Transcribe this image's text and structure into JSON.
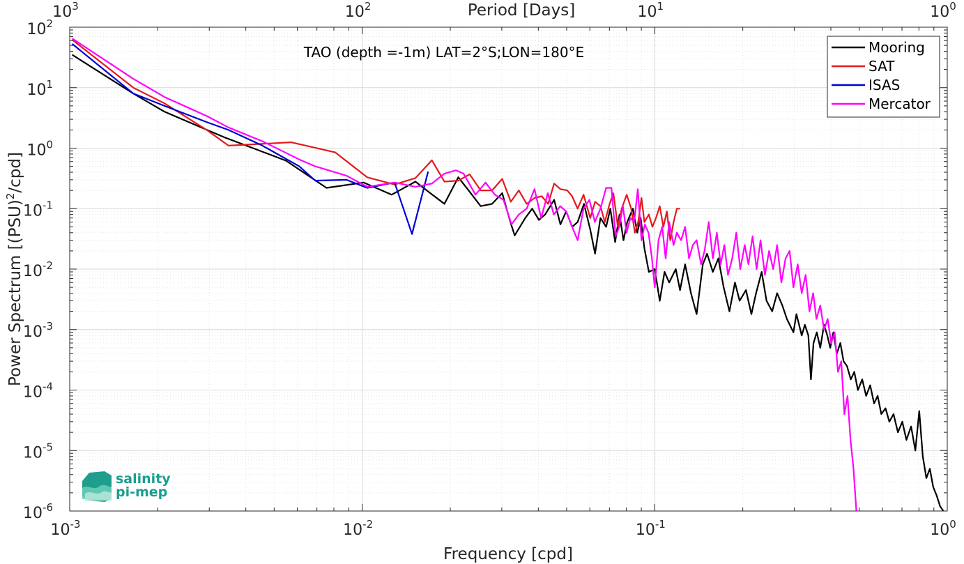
{
  "chart_data": {
    "type": "line",
    "title": "TAO (depth =-1m) LAT=2°S;LON=180°E",
    "xlabel": "Frequency [cpd]",
    "ylabel": "Power Spectrum [(PSU)^2/cpd]",
    "top_xlabel": "Period [Days]",
    "xscale": "log",
    "yscale": "log",
    "xlim": [
      0.001,
      1
    ],
    "ylim": [
      1e-06,
      100
    ],
    "grid": true,
    "legend_position": "top-right",
    "x_ticks": [
      {
        "base": "10",
        "exp": "-3"
      },
      {
        "base": "10",
        "exp": "-2"
      },
      {
        "base": "10",
        "exp": "-1"
      },
      {
        "base": "10",
        "exp": "0"
      }
    ],
    "top_ticks": [
      {
        "base": "10",
        "exp": "3"
      },
      {
        "base": "10",
        "exp": "2"
      },
      {
        "base": "10",
        "exp": "1"
      },
      {
        "base": "10",
        "exp": "0"
      }
    ],
    "y_ticks": [
      {
        "base": "10",
        "exp": "2"
      },
      {
        "base": "10",
        "exp": "1"
      },
      {
        "base": "10",
        "exp": "0"
      },
      {
        "base": "10",
        "exp": "-1"
      },
      {
        "base": "10",
        "exp": "-2"
      },
      {
        "base": "10",
        "exp": "-3"
      },
      {
        "base": "10",
        "exp": "-4"
      },
      {
        "base": "10",
        "exp": "-5"
      },
      {
        "base": "10",
        "exp": "-6"
      }
    ],
    "series": [
      {
        "name": "Mooring",
        "color": "#000000",
        "points": [
          [
            0.00102,
            35
          ],
          [
            0.00165,
            8
          ],
          [
            0.00211,
            4
          ],
          [
            0.00339,
            1.5
          ],
          [
            0.00549,
            0.62
          ],
          [
            0.00755,
            0.22
          ],
          [
            0.0101,
            0.27
          ],
          [
            0.0126,
            0.17
          ],
          [
            0.0152,
            0.28
          ],
          [
            0.0171,
            0.18
          ],
          [
            0.0191,
            0.12
          ],
          [
            0.0213,
            0.33
          ],
          [
            0.0233,
            0.19
          ],
          [
            0.0254,
            0.11
          ],
          [
            0.0278,
            0.12
          ],
          [
            0.0301,
            0.18
          ],
          [
            0.0321,
            0.06
          ],
          [
            0.0332,
            0.036
          ],
          [
            0.0361,
            0.07
          ],
          [
            0.0381,
            0.1
          ],
          [
            0.0402,
            0.065
          ],
          [
            0.0422,
            0.08
          ],
          [
            0.0453,
            0.14
          ],
          [
            0.0476,
            0.055
          ],
          [
            0.0498,
            0.09
          ],
          [
            0.0522,
            0.05
          ],
          [
            0.0545,
            0.06
          ],
          [
            0.0573,
            0.12
          ],
          [
            0.0602,
            0.045
          ],
          [
            0.0625,
            0.018
          ],
          [
            0.0652,
            0.07
          ],
          [
            0.0682,
            0.05
          ],
          [
            0.0705,
            0.1
          ],
          [
            0.0732,
            0.028
          ],
          [
            0.0758,
            0.08
          ],
          [
            0.0782,
            0.03
          ],
          [
            0.0805,
            0.06
          ],
          [
            0.0842,
            0.1
          ],
          [
            0.0871,
            0.04
          ],
          [
            0.0895,
            0.07
          ],
          [
            0.0922,
            0.022
          ],
          [
            0.0955,
            0.009
          ],
          [
            0.1,
            0.01
          ],
          [
            0.104,
            0.003
          ],
          [
            0.108,
            0.009
          ],
          [
            0.112,
            0.006
          ],
          [
            0.118,
            0.01
          ],
          [
            0.122,
            0.0045
          ],
          [
            0.127,
            0.012
          ],
          [
            0.133,
            0.004
          ],
          [
            0.139,
            0.0018
          ],
          [
            0.146,
            0.012
          ],
          [
            0.151,
            0.018
          ],
          [
            0.158,
            0.009
          ],
          [
            0.165,
            0.015
          ],
          [
            0.172,
            0.005
          ],
          [
            0.18,
            0.002
          ],
          [
            0.188,
            0.006
          ],
          [
            0.195,
            0.003
          ],
          [
            0.205,
            0.0045
          ],
          [
            0.214,
            0.0018
          ],
          [
            0.222,
            0.004
          ],
          [
            0.232,
            0.009
          ],
          [
            0.241,
            0.003
          ],
          [
            0.252,
            0.002
          ],
          [
            0.262,
            0.004
          ],
          [
            0.273,
            0.0025
          ],
          [
            0.283,
            0.0015
          ],
          [
            0.298,
            0.0009
          ],
          [
            0.305,
            0.0018
          ],
          [
            0.318,
            0.0008
          ],
          [
            0.326,
            0.0012
          ],
          [
            0.335,
            0.0008
          ],
          [
            0.342,
            0.00015
          ],
          [
            0.349,
            0.0006
          ],
          [
            0.358,
            0.0009
          ],
          [
            0.368,
            0.0005
          ],
          [
            0.379,
            0.0012
          ],
          [
            0.389,
            0.0008
          ],
          [
            0.398,
            0.0005
          ],
          [
            0.408,
            0.0009
          ],
          [
            0.419,
            0.0004
          ],
          [
            0.431,
            0.0006
          ],
          [
            0.442,
            0.0003
          ],
          [
            0.454,
            0.00025
          ],
          [
            0.468,
            0.00015
          ],
          [
            0.481,
            0.0002
          ],
          [
            0.495,
            0.0001
          ],
          [
            0.512,
            0.00015
          ],
          [
            0.528,
            8e-05
          ],
          [
            0.545,
            0.00012
          ],
          [
            0.562,
            6e-05
          ],
          [
            0.578,
            8e-05
          ],
          [
            0.595,
            4e-05
          ],
          [
            0.615,
            5e-05
          ],
          [
            0.634,
            3e-05
          ],
          [
            0.655,
            4e-05
          ],
          [
            0.678,
            2e-05
          ],
          [
            0.702,
            3e-05
          ],
          [
            0.725,
            1.5e-05
          ],
          [
            0.752,
            2.5e-05
          ],
          [
            0.778,
            1e-05
          ],
          [
            0.802,
            4.5e-05
          ],
          [
            0.825,
            8e-06
          ],
          [
            0.848,
            3.5e-06
          ],
          [
            0.872,
            5e-06
          ],
          [
            0.895,
            2.5e-06
          ],
          [
            0.92,
            1.8e-06
          ],
          [
            0.945,
            1.2e-06
          ],
          [
            0.97,
            1e-06
          ]
        ]
      },
      {
        "name": "SAT",
        "color": "#e41a1c",
        "points": [
          [
            0.00102,
            62
          ],
          [
            0.00165,
            10
          ],
          [
            0.00211,
            5.5
          ],
          [
            0.00294,
            2
          ],
          [
            0.00349,
            1.1
          ],
          [
            0.00571,
            1.25
          ],
          [
            0.00809,
            0.85
          ],
          [
            0.0104,
            0.33
          ],
          [
            0.0129,
            0.25
          ],
          [
            0.0152,
            0.32
          ],
          [
            0.0173,
            0.63
          ],
          [
            0.0191,
            0.28
          ],
          [
            0.0213,
            0.29
          ],
          [
            0.0233,
            0.37
          ],
          [
            0.0254,
            0.2
          ],
          [
            0.0278,
            0.2
          ],
          [
            0.0301,
            0.31
          ],
          [
            0.0322,
            0.13
          ],
          [
            0.0343,
            0.2
          ],
          [
            0.0365,
            0.12
          ],
          [
            0.0388,
            0.15
          ],
          [
            0.0411,
            0.16
          ],
          [
            0.0432,
            0.12
          ],
          [
            0.0453,
            0.26
          ],
          [
            0.0476,
            0.21
          ],
          [
            0.0502,
            0.2
          ],
          [
            0.0522,
            0.16
          ],
          [
            0.0545,
            0.1
          ],
          [
            0.0571,
            0.17
          ],
          [
            0.0602,
            0.07
          ],
          [
            0.0625,
            0.13
          ],
          [
            0.0652,
            0.11
          ],
          [
            0.0675,
            0.06
          ],
          [
            0.0701,
            0.12
          ],
          [
            0.0722,
            0.18
          ],
          [
            0.0748,
            0.05
          ],
          [
            0.0771,
            0.1
          ],
          [
            0.0802,
            0.17
          ],
          [
            0.0831,
            0.1
          ],
          [
            0.0855,
            0.04
          ],
          [
            0.0878,
            0.06
          ],
          [
            0.0901,
            0.15
          ],
          [
            0.0922,
            0.06
          ],
          [
            0.0955,
            0.08
          ],
          [
            0.0982,
            0.05
          ],
          [
            0.101,
            0.07
          ],
          [
            0.104,
            0.11
          ],
          [
            0.107,
            0.05
          ],
          [
            0.11,
            0.09
          ],
          [
            0.113,
            0.03
          ],
          [
            0.116,
            0.06
          ],
          [
            0.119,
            0.1
          ],
          [
            0.122,
            0.1
          ]
        ]
      },
      {
        "name": "ISAS",
        "color": "#0000d8",
        "points": [
          [
            0.00102,
            53
          ],
          [
            0.00165,
            8
          ],
          [
            0.00211,
            5
          ],
          [
            0.00294,
            2.7
          ],
          [
            0.00349,
            2
          ],
          [
            0.00456,
            1.1
          ],
          [
            0.00609,
            0.5
          ],
          [
            0.00691,
            0.29
          ],
          [
            0.00884,
            0.3
          ],
          [
            0.0104,
            0.22
          ],
          [
            0.0129,
            0.27
          ],
          [
            0.0148,
            0.038
          ],
          [
            0.0168,
            0.41
          ]
        ]
      },
      {
        "name": "Mercator",
        "color": "#ff00ff",
        "points": [
          [
            0.00102,
            65
          ],
          [
            0.00165,
            14
          ],
          [
            0.00211,
            7
          ],
          [
            0.00294,
            3.4
          ],
          [
            0.00349,
            2.2
          ],
          [
            0.00456,
            1.3
          ],
          [
            0.00609,
            0.65
          ],
          [
            0.00691,
            0.5
          ],
          [
            0.00884,
            0.35
          ],
          [
            0.0104,
            0.23
          ],
          [
            0.0129,
            0.27
          ],
          [
            0.0152,
            0.23
          ],
          [
            0.0173,
            0.26
          ],
          [
            0.0191,
            0.38
          ],
          [
            0.0209,
            0.43
          ],
          [
            0.0222,
            0.38
          ],
          [
            0.0244,
            0.17
          ],
          [
            0.0264,
            0.27
          ],
          [
            0.0284,
            0.17
          ],
          [
            0.0304,
            0.14
          ],
          [
            0.0324,
            0.055
          ],
          [
            0.0343,
            0.08
          ],
          [
            0.0365,
            0.1
          ],
          [
            0.0388,
            0.21
          ],
          [
            0.0409,
            0.07
          ],
          [
            0.0431,
            0.18
          ],
          [
            0.0452,
            0.08
          ],
          [
            0.0475,
            0.11
          ],
          [
            0.0498,
            0.09
          ],
          [
            0.0522,
            0.05
          ],
          [
            0.0545,
            0.03
          ],
          [
            0.0571,
            0.1
          ],
          [
            0.0598,
            0.14
          ],
          [
            0.0624,
            0.06
          ],
          [
            0.0652,
            0.1
          ],
          [
            0.0682,
            0.22
          ],
          [
            0.0711,
            0.22
          ],
          [
            0.0735,
            0.035
          ],
          [
            0.0756,
            0.05
          ],
          [
            0.0778,
            0.11
          ],
          [
            0.0801,
            0.04
          ],
          [
            0.0825,
            0.07
          ],
          [
            0.0851,
            0.06
          ],
          [
            0.0875,
            0.21
          ],
          [
            0.0901,
            0.03
          ],
          [
            0.0925,
            0.055
          ],
          [
            0.0952,
            0.04
          ],
          [
            0.0978,
            0.015
          ],
          [
            0.1,
            0.005
          ],
          [
            0.103,
            0.03
          ],
          [
            0.106,
            0.05
          ],
          [
            0.109,
            0.015
          ],
          [
            0.112,
            0.06
          ],
          [
            0.116,
            0.025
          ],
          [
            0.119,
            0.04
          ],
          [
            0.123,
            0.03
          ],
          [
            0.127,
            0.05
          ],
          [
            0.131,
            0.015
          ],
          [
            0.135,
            0.025
          ],
          [
            0.139,
            0.03
          ],
          [
            0.144,
            0.012
          ],
          [
            0.148,
            0.02
          ],
          [
            0.153,
            0.06
          ],
          [
            0.158,
            0.015
          ],
          [
            0.163,
            0.04
          ],
          [
            0.168,
            0.012
          ],
          [
            0.173,
            0.025
          ],
          [
            0.178,
            0.008
          ],
          [
            0.184,
            0.015
          ],
          [
            0.19,
            0.04
          ],
          [
            0.196,
            0.01
          ],
          [
            0.203,
            0.025
          ],
          [
            0.209,
            0.012
          ],
          [
            0.216,
            0.035
          ],
          [
            0.223,
            0.01
          ],
          [
            0.23,
            0.03
          ],
          [
            0.238,
            0.008
          ],
          [
            0.246,
            0.02
          ],
          [
            0.254,
            0.01
          ],
          [
            0.262,
            0.025
          ],
          [
            0.271,
            0.006
          ],
          [
            0.28,
            0.015
          ],
          [
            0.289,
            0.02
          ],
          [
            0.298,
            0.005
          ],
          [
            0.308,
            0.012
          ],
          [
            0.318,
            0.004
          ],
          [
            0.328,
            0.008
          ],
          [
            0.338,
            0.002
          ],
          [
            0.348,
            0.004
          ],
          [
            0.357,
            0.0015
          ],
          [
            0.368,
            0.0025
          ],
          [
            0.379,
            0.001
          ],
          [
            0.39,
            0.0015
          ],
          [
            0.401,
            0.0006
          ],
          [
            0.412,
            0.0009
          ],
          [
            0.423,
            0.0002
          ],
          [
            0.434,
            0.0003
          ],
          [
            0.445,
            4e-05
          ],
          [
            0.456,
            8e-05
          ],
          [
            0.467,
            1.5e-05
          ],
          [
            0.478,
            5e-06
          ],
          [
            0.489,
            1e-06
          ]
        ]
      }
    ]
  },
  "legend": [
    "Mooring",
    "SAT",
    "ISAS",
    "Mercator"
  ],
  "logo": {
    "line1": "salinity",
    "line2": "pi-mep",
    "color": "#1a9e8f"
  }
}
